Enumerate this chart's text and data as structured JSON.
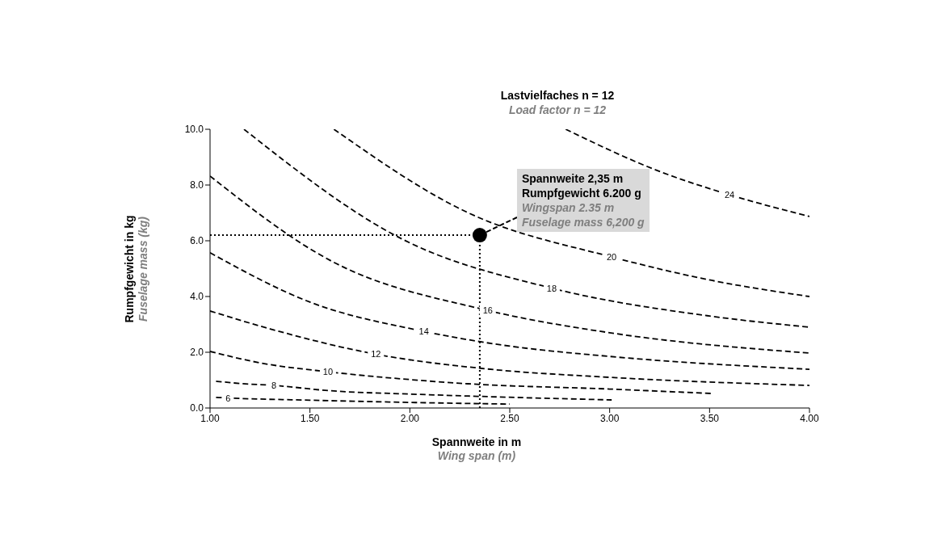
{
  "chart_data": {
    "type": "line",
    "title": "Lastvielfaches n = 12",
    "subtitle": "Load factor n = 12",
    "xlabel": "Spannweite in m\nWing span (m)",
    "ylabel": "Rumpfgewicht in kg\nFuselage mass (kg)",
    "xlim": [
      1,
      4
    ],
    "xticks": [
      {
        "value": 1,
        "label": "1.00"
      },
      {
        "value": 1.5,
        "label": "1.50"
      },
      {
        "value": 2,
        "label": "2.00"
      },
      {
        "value": 2.5,
        "label": "2.50"
      },
      {
        "value": 3,
        "label": "3.00"
      },
      {
        "value": 3.5,
        "label": "3.50"
      },
      {
        "value": 4,
        "label": "4.00"
      }
    ],
    "ylim": [
      0,
      10
    ],
    "yticks": [
      {
        "value": 0,
        "label": "0.0"
      },
      {
        "value": 2,
        "label": "2.0"
      },
      {
        "value": 4,
        "label": "4.0"
      },
      {
        "value": 6,
        "label": "6.0"
      },
      {
        "value": 8,
        "label": "8.0"
      },
      {
        "value": 10,
        "label": "10.0"
      }
    ],
    "marker": "none",
    "line_style": "dashed",
    "series": [
      {
        "name": "6",
        "color": "#000000",
        "x": [
          1.03,
          1.06,
          1.09,
          1.5,
          2.0,
          2.5
        ],
        "values": [
          0.38,
          0.37,
          0.36,
          0.28,
          0.2,
          0.14
        ]
      },
      {
        "name": "8",
        "color": "#000000",
        "x": [
          1.03,
          1.15,
          1.32,
          1.6,
          2.0,
          2.29,
          3.01
        ],
        "values": [
          0.96,
          0.88,
          0.81,
          0.62,
          0.5,
          0.43,
          0.29
        ]
      },
      {
        "name": "10",
        "color": "#000000",
        "x": [
          1.0,
          1.25,
          1.59,
          2.0,
          2.29,
          3.0,
          3.51
        ],
        "values": [
          2.03,
          1.62,
          1.3,
          1.02,
          0.87,
          0.68,
          0.52
        ]
      },
      {
        "name": "12",
        "color": "#000000",
        "x": [
          1.0,
          1.3,
          1.83,
          2.36,
          3.0,
          4.0
        ],
        "values": [
          3.48,
          2.84,
          1.93,
          1.42,
          1.1,
          0.81
        ]
      },
      {
        "name": "14",
        "color": "#000000",
        "x": [
          1.0,
          1.5,
          2.07,
          2.46,
          3.0,
          4.0
        ],
        "values": [
          5.57,
          3.8,
          2.75,
          2.26,
          1.85,
          1.39
        ]
      },
      {
        "name": "16",
        "color": "#000000",
        "x": [
          1.0,
          1.6,
          2.39,
          3.0,
          4.0
        ],
        "values": [
          8.32,
          5.3,
          3.5,
          2.7,
          1.97
        ]
      },
      {
        "name": "18",
        "color": "#000000",
        "x": [
          1.17,
          1.97,
          2.71,
          3.5,
          4.0
        ],
        "values": [
          10,
          6.03,
          4.3,
          3.3,
          2.9
        ]
      },
      {
        "name": "20",
        "color": "#000000",
        "x": [
          1.62,
          2.29,
          3.01,
          3.51,
          4.0
        ],
        "values": [
          10,
          7.01,
          5.42,
          4.58,
          4.0
        ]
      },
      {
        "name": "24",
        "color": "#000000",
        "x": [
          2.78,
          3.26,
          3.6,
          4.0
        ],
        "values": [
          10,
          8.46,
          7.65,
          6.87
        ]
      },
      {
        "type": "scatter",
        "marker": "circle",
        "color": "#000000",
        "x": [
          2.35
        ],
        "values": [
          6.2
        ]
      }
    ],
    "ref_lines": [
      {
        "axis": "y",
        "value": 6.2,
        "line_style": "dotted",
        "color": "#000000"
      },
      {
        "axis": "x",
        "value": 2.35,
        "line_style": "dotted",
        "color": "#000000"
      }
    ],
    "annotations": [
      {
        "text": "Spannweite 2,35 m\nRumpfgewicht 6.200 g\nWingspan 2.35 m\nFuselage mass 6,200 g",
        "x": 2.35,
        "y": 6.2
      }
    ]
  }
}
